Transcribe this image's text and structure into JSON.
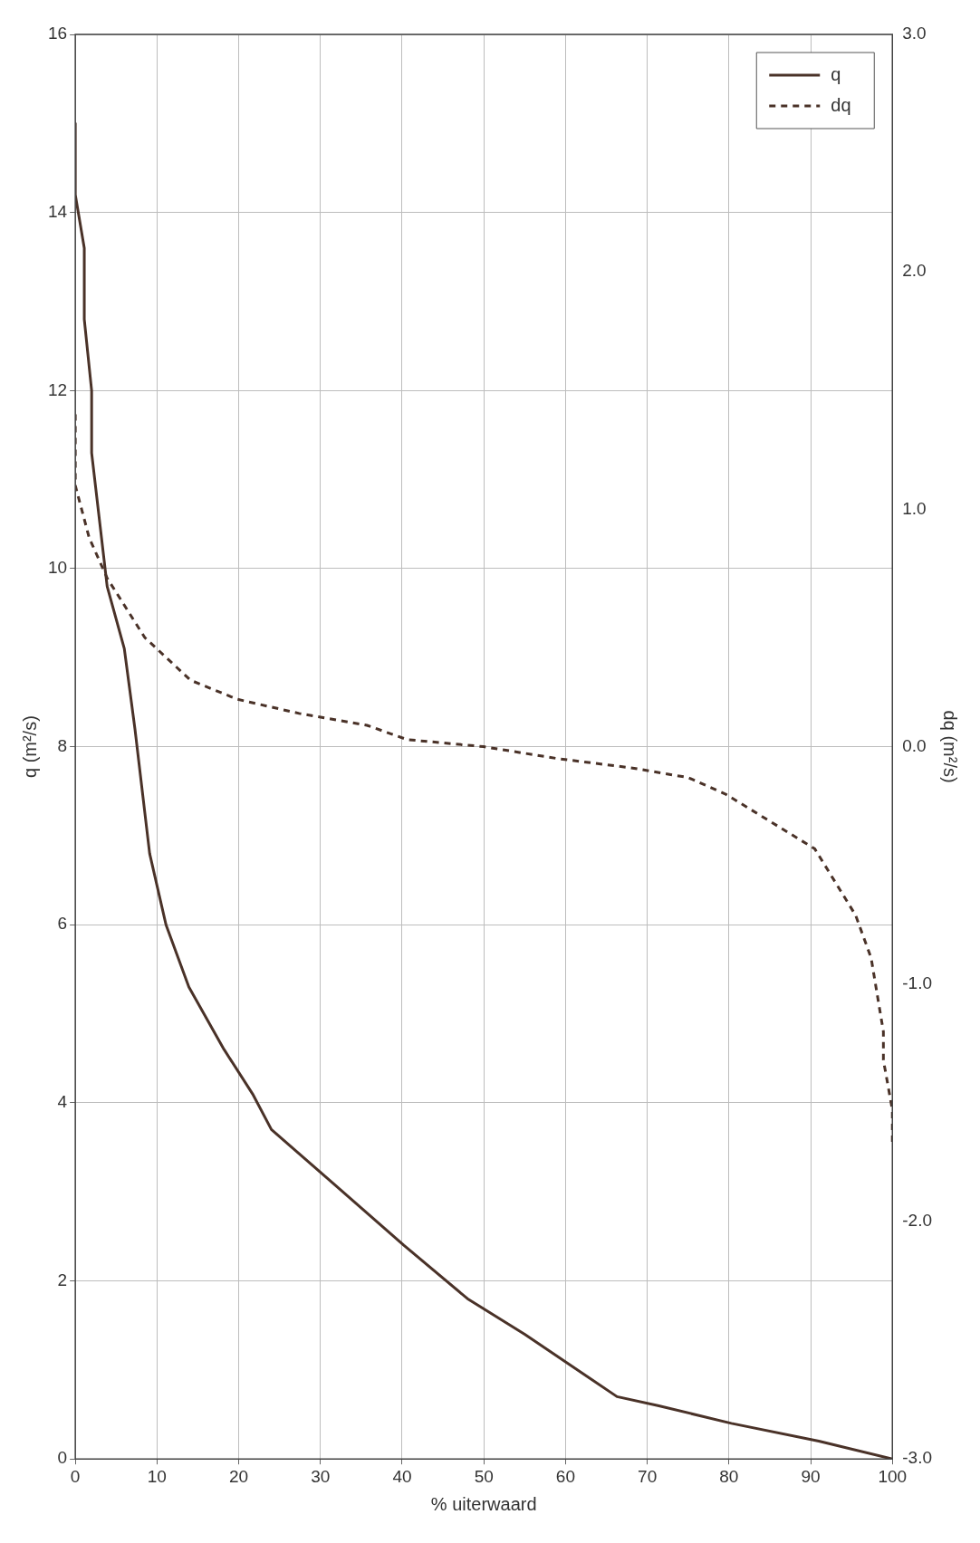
{
  "chart_data": {
    "type": "line",
    "xlabel": "% uiterwaard",
    "ylabel": "q (m²/s)",
    "y2label": "dq (m²/s)",
    "xlim": [
      0,
      100
    ],
    "xticks": [
      0,
      10,
      20,
      30,
      40,
      50,
      60,
      70,
      80,
      90,
      100
    ],
    "ylim": [
      0,
      16
    ],
    "yticks": [
      0,
      2,
      4,
      6,
      8,
      10,
      12,
      14,
      16
    ],
    "y2lim": [
      -3,
      3
    ],
    "y2ticks": [
      {
        "value": -3,
        "label": "-3.0"
      },
      {
        "value": -2,
        "label": "-2.0"
      },
      {
        "value": -1,
        "label": "-1.0"
      },
      {
        "value": 0,
        "label": "0.0"
      },
      {
        "value": 1,
        "label": "1.0"
      },
      {
        "value": 2,
        "label": "2.0"
      },
      {
        "value": 3,
        "label": "3.0"
      }
    ],
    "grid": true,
    "legend": "top right",
    "marker": "none",
    "series": [
      {
        "name": "q",
        "color": "#4a3228",
        "line_style": "solid",
        "x": [
          0,
          0,
          1.1,
          1.1,
          2,
          2,
          3.9,
          6,
          7.3,
          9.1,
          11.1,
          13.9,
          18.2,
          21.7,
          24,
          31.5,
          40.2,
          48,
          55,
          66.3,
          71.3,
          80.3,
          91,
          100
        ],
        "values": [
          15,
          14.2,
          13.6,
          12.8,
          12,
          11.3,
          9.8,
          9.1,
          8.2,
          6.8,
          6,
          5.3,
          4.6,
          4.1,
          3.7,
          3.1,
          2.4,
          1.8,
          1.4,
          0.7,
          0.6,
          0.4,
          0.2,
          0
        ]
      },
      {
        "name": "dq",
        "color": "#4a3228",
        "line_style": "dashed",
        "axis": "y2",
        "x": [
          0,
          0,
          1.7,
          3.9,
          8.5,
          14.1,
          19.8,
          27.4,
          35.7,
          40.6,
          50,
          59,
          68.2,
          75,
          79.6,
          90.5,
          95.5,
          97.4,
          98.9,
          98.9,
          100,
          100
        ],
        "values": [
          1.4,
          1.1,
          0.88,
          0.71,
          0.46,
          0.28,
          0.2,
          0.14,
          0.09,
          0.03,
          0,
          -0.05,
          -0.09,
          -0.13,
          -0.2,
          -0.43,
          -0.71,
          -0.89,
          -1.2,
          -1.32,
          -1.53,
          -1.67
        ]
      }
    ]
  }
}
